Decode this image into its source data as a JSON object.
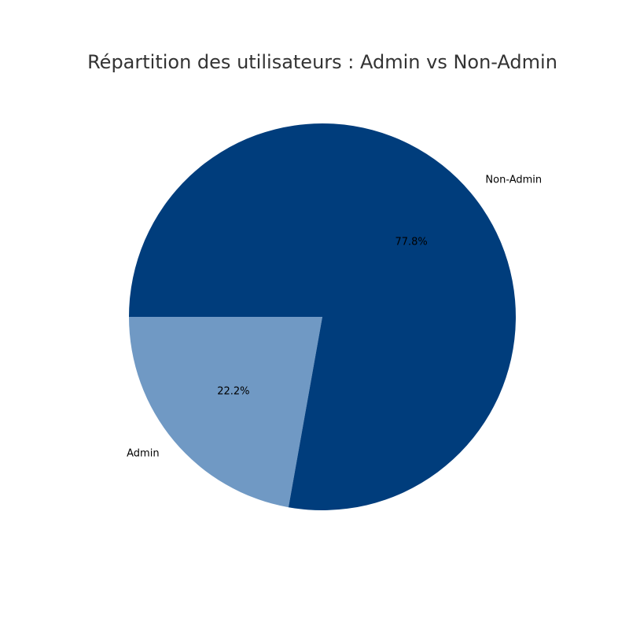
{
  "chart_data": {
    "type": "pie",
    "title": "Répartition des utilisateurs : Admin vs Non-Admin",
    "slices": [
      {
        "label": "Admin",
        "value": 22.2,
        "pct_label": "22.2%",
        "color": "#7099c4"
      },
      {
        "label": "Non-Admin",
        "value": 77.8,
        "pct_label": "77.8%",
        "color": "#003d7c"
      }
    ],
    "start_angle_deg": 180,
    "direction": "counterclockwise"
  }
}
